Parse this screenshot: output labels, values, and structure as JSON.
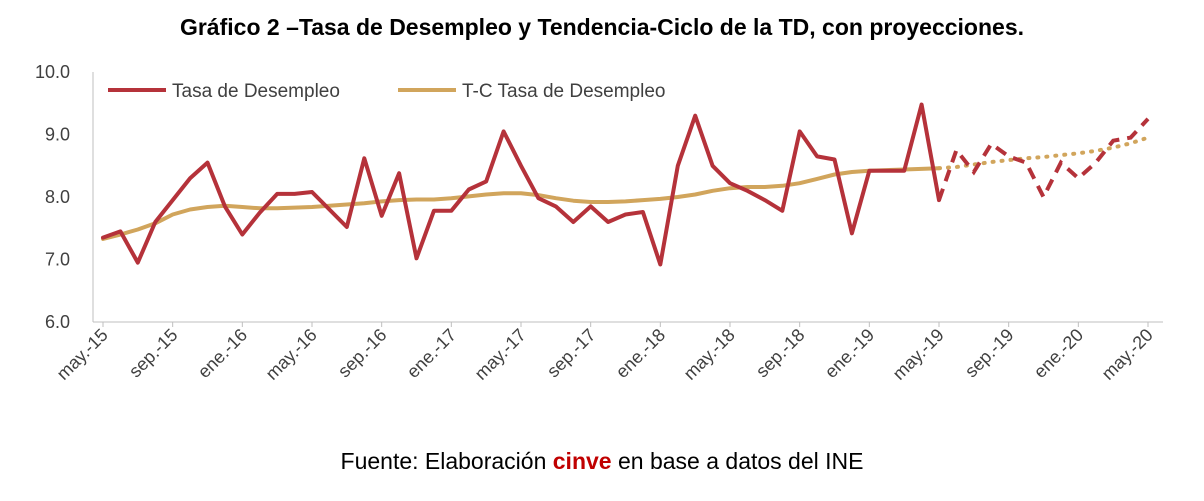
{
  "title": "Gráfico 2 –Tasa de Desempleo y Tendencia-Ciclo de la TD, con proyecciones.",
  "source": {
    "prefix": "Fuente: Elaboración ",
    "highlight": "cinve",
    "suffix": " en base a datos del INE"
  },
  "colors": {
    "series_desempleo": "#b5323a",
    "series_tc": "#d1a55c",
    "axis": "#bfbfbf",
    "text": "#404040",
    "highlight": "#c00000"
  },
  "chart_data": {
    "type": "line",
    "title": "Gráfico 2 –Tasa de Desempleo y Tendencia-Ciclo de la TD, con proyecciones.",
    "xlabel": "",
    "ylabel": "",
    "ylim": [
      6.0,
      10.0
    ],
    "yticks": [
      "6.0",
      "7.0",
      "8.0",
      "9.0",
      "10.0"
    ],
    "grid": false,
    "legend_position": "top-left",
    "x": [
      "may.-15",
      "jun.-15",
      "jul.-15",
      "ago.-15",
      "sep.-15",
      "oct.-15",
      "nov.-15",
      "dic.-15",
      "ene.-16",
      "feb.-16",
      "mar.-16",
      "abr.-16",
      "may.-16",
      "jun.-16",
      "jul.-16",
      "ago.-16",
      "sep.-16",
      "oct.-16",
      "nov.-16",
      "dic.-16",
      "ene.-17",
      "feb.-17",
      "mar.-17",
      "abr.-17",
      "may.-17",
      "jun.-17",
      "jul.-17",
      "ago.-17",
      "sep.-17",
      "oct.-17",
      "nov.-17",
      "dic.-17",
      "ene.-18",
      "feb.-18",
      "mar.-18",
      "abr.-18",
      "may.-18",
      "jun.-18",
      "jul.-18",
      "ago.-18",
      "sep.-18",
      "oct.-18",
      "nov.-18",
      "dic.-18",
      "ene.-19",
      "feb.-19",
      "mar.-19",
      "abr.-19",
      "may.-19",
      "jun.-19",
      "jul.-19",
      "ago.-19",
      "sep.-19",
      "oct.-19",
      "nov.-19",
      "dic.-19",
      "ene.-20",
      "feb.-20",
      "mar.-20",
      "abr.-20",
      "may.-20"
    ],
    "x_tick_labels": [
      "may.-15",
      "sep.-15",
      "ene.-16",
      "may.-16",
      "sep.-16",
      "ene.-17",
      "may.-17",
      "sep.-17",
      "ene.-18",
      "may.-18",
      "sep.-18",
      "ene.-19",
      "may.-19",
      "sep.-19",
      "ene.-20",
      "may.-20"
    ],
    "series": [
      {
        "name": "Tasa de Desempleo",
        "values": [
          7.35,
          7.45,
          6.95,
          7.6,
          7.95,
          8.3,
          8.55,
          7.85,
          7.4,
          7.75,
          8.05,
          8.05,
          8.08,
          7.8,
          7.52,
          8.62,
          7.7,
          8.38,
          7.02,
          7.78,
          7.78,
          8.12,
          8.25,
          9.05,
          8.5,
          7.98,
          7.85,
          7.6,
          7.85,
          7.6,
          7.72,
          7.76,
          6.92,
          8.5,
          9.3,
          8.5,
          8.22,
          8.1,
          7.95,
          7.78,
          9.05,
          8.65,
          8.6,
          7.42,
          8.42,
          8.42,
          8.42,
          9.48,
          7.95,
          8.75,
          8.4,
          8.85,
          8.65,
          8.55,
          8.0,
          8.55,
          8.3,
          8.55,
          8.9,
          8.95,
          9.25
        ],
        "actual_through": "may.-19",
        "projected_style": "dashed"
      },
      {
        "name": "T-C Tasa de Desempleo",
        "values": [
          7.33,
          7.4,
          7.48,
          7.58,
          7.72,
          7.8,
          7.84,
          7.86,
          7.84,
          7.82,
          7.82,
          7.83,
          7.84,
          7.86,
          7.88,
          7.9,
          7.93,
          7.95,
          7.96,
          7.96,
          7.98,
          8.01,
          8.04,
          8.06,
          8.06,
          8.03,
          7.98,
          7.94,
          7.92,
          7.92,
          7.93,
          7.95,
          7.97,
          8.0,
          8.04,
          8.1,
          8.14,
          8.16,
          8.16,
          8.18,
          8.22,
          8.29,
          8.36,
          8.4,
          8.42,
          8.43,
          8.44,
          8.45,
          8.46,
          8.48,
          8.52,
          8.56,
          8.59,
          8.62,
          8.64,
          8.67,
          8.7,
          8.74,
          8.79,
          8.86,
          8.95
        ],
        "actual_through": "may.-19",
        "projected_style": "dotted"
      }
    ]
  }
}
